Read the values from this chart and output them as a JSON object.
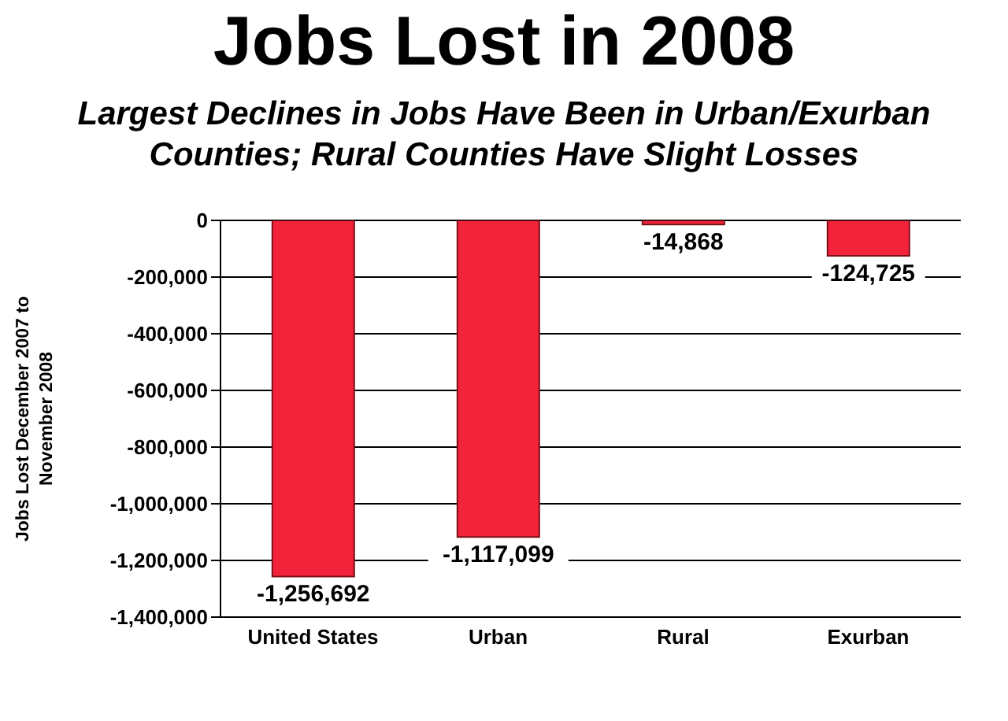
{
  "chart_data": {
    "type": "bar",
    "title": "Jobs Lost in 2008",
    "subtitle": "Largest Declines in Jobs Have Been in Urban/Exurban Counties; Rural Counties Have Slight Losses",
    "ylabel": "Jobs Lost December 2007 to November 2008",
    "categories": [
      "United States",
      "Urban",
      "Rural",
      "Exurban"
    ],
    "values": [
      -1256692,
      -1117099,
      -14868,
      -124725
    ],
    "value_labels": [
      "-1,256,692",
      "-1,117,099",
      "-14,868",
      "-124,725"
    ],
    "color": "#f2233a",
    "ylim": [
      -1400000,
      0
    ],
    "yticks": [
      {
        "value": -1400000,
        "label": "-1,400,000"
      },
      {
        "value": -1200000,
        "label": "-1,200,000"
      },
      {
        "value": -1000000,
        "label": "-1,000,000"
      },
      {
        "value": -800000,
        "label": "-800,000"
      },
      {
        "value": -600000,
        "label": "-600,000"
      },
      {
        "value": -400000,
        "label": "-400,000"
      },
      {
        "value": -200000,
        "label": "-200,000"
      },
      0
    ],
    "grid": "y",
    "legend": false
  }
}
